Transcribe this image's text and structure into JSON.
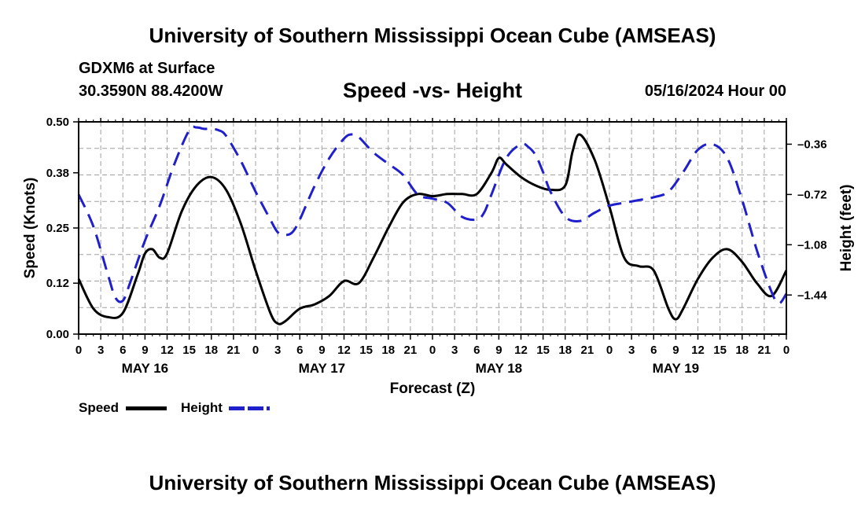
{
  "header": {
    "title": "University of Southern Mississippi Ocean Cube (AMSEAS)",
    "station": "GDXM6 at Surface",
    "coordinates": "30.3590N  88.4200W",
    "subtitle": "Speed -vs- Height",
    "datetime": "05/16/2024 Hour 00"
  },
  "footer": {
    "title": "University of Southern Mississippi Ocean Cube (AMSEAS)"
  },
  "legend": {
    "speed_label": "Speed",
    "height_label": "Height"
  },
  "colors": {
    "speed": "#000000",
    "height": "#1f1fcc",
    "grid": "#a0a0a0"
  },
  "chart_data": {
    "type": "line",
    "title": "Speed -vs- Height",
    "xlabel": "Forecast (Z)",
    "ylabel": "Speed (Knots)",
    "y2label": "Height (feet)",
    "xlim": [
      0,
      96
    ],
    "ylim": [
      0,
      0.5
    ],
    "y2lim": [
      -1.72,
      -0.2
    ],
    "x_tick_labels": [
      "0",
      "3",
      "6",
      "9",
      "12",
      "15",
      "18",
      "21",
      "0",
      "3",
      "6",
      "9",
      "12",
      "15",
      "18",
      "21",
      "0",
      "3",
      "6",
      "9",
      "12",
      "15",
      "18",
      "21",
      "0",
      "3",
      "6",
      "9",
      "12",
      "15",
      "18",
      "21",
      "0"
    ],
    "day_labels": [
      {
        "x": 9,
        "label": "MAY 16"
      },
      {
        "x": 33,
        "label": "MAY 17"
      },
      {
        "x": 57,
        "label": "MAY 18"
      },
      {
        "x": 81,
        "label": "MAY 19"
      }
    ],
    "y_ticks": [
      0.0,
      0.12,
      0.25,
      0.38,
      0.5
    ],
    "y_tick_labels": [
      "0.00",
      "0.12",
      "0.25",
      "0.38",
      "0.50"
    ],
    "y2_ticks": [
      -1.44,
      -1.08,
      -0.72,
      -0.36
    ],
    "y2_tick_labels": [
      "–1.44",
      "–1.08",
      "–0.72",
      "–0.36"
    ],
    "series": [
      {
        "name": "Speed",
        "axis": "left",
        "style": "solid",
        "x": [
          0,
          2,
          4,
          6,
          8,
          9,
          10,
          11,
          12,
          14,
          16,
          18,
          20,
          22,
          24,
          26,
          27,
          28,
          30,
          32,
          34,
          36,
          38,
          40,
          42,
          44,
          46,
          48,
          50,
          52,
          54,
          56,
          57,
          58,
          60,
          62,
          64,
          66,
          67,
          68,
          70,
          72,
          74,
          76,
          78,
          80,
          81,
          82,
          84,
          86,
          88,
          90,
          92,
          94,
          96
        ],
        "values": [
          0.13,
          0.06,
          0.04,
          0.05,
          0.14,
          0.19,
          0.2,
          0.18,
          0.19,
          0.29,
          0.35,
          0.37,
          0.34,
          0.26,
          0.15,
          0.05,
          0.025,
          0.03,
          0.06,
          0.07,
          0.09,
          0.125,
          0.12,
          0.18,
          0.25,
          0.31,
          0.33,
          0.325,
          0.33,
          0.33,
          0.33,
          0.38,
          0.415,
          0.4,
          0.37,
          0.35,
          0.34,
          0.35,
          0.43,
          0.47,
          0.41,
          0.3,
          0.18,
          0.16,
          0.15,
          0.06,
          0.035,
          0.06,
          0.13,
          0.18,
          0.2,
          0.17,
          0.12,
          0.09,
          0.15
        ]
      },
      {
        "name": "Height",
        "axis": "right",
        "style": "dashed",
        "x": [
          0,
          2,
          4,
          5,
          6,
          7,
          9,
          11,
          13,
          15,
          16,
          17,
          18,
          19,
          20,
          22,
          24,
          26,
          27,
          28,
          29,
          30,
          32,
          34,
          36,
          37,
          38,
          40,
          42,
          44,
          46,
          48,
          50,
          52,
          54,
          55,
          56,
          58,
          60,
          61,
          62,
          63,
          64,
          66,
          68,
          70,
          72,
          74,
          76,
          78,
          80,
          82,
          84,
          86,
          88,
          90,
          92,
          94,
          95,
          96
        ],
        "values": [
          -0.72,
          -0.95,
          -1.3,
          -1.46,
          -1.48,
          -1.35,
          -1.05,
          -0.8,
          -0.5,
          -0.26,
          -0.24,
          -0.25,
          -0.25,
          -0.26,
          -0.3,
          -0.48,
          -0.7,
          -0.9,
          -0.99,
          -1.01,
          -0.99,
          -0.9,
          -0.66,
          -0.46,
          -0.32,
          -0.29,
          -0.31,
          -0.42,
          -0.5,
          -0.58,
          -0.72,
          -0.75,
          -0.78,
          -0.88,
          -0.9,
          -0.85,
          -0.72,
          -0.46,
          -0.36,
          -0.38,
          -0.44,
          -0.56,
          -0.7,
          -0.88,
          -0.91,
          -0.85,
          -0.8,
          -0.78,
          -0.76,
          -0.74,
          -0.7,
          -0.56,
          -0.4,
          -0.36,
          -0.46,
          -0.76,
          -1.12,
          -1.42,
          -1.5,
          -1.43
        ]
      }
    ]
  }
}
